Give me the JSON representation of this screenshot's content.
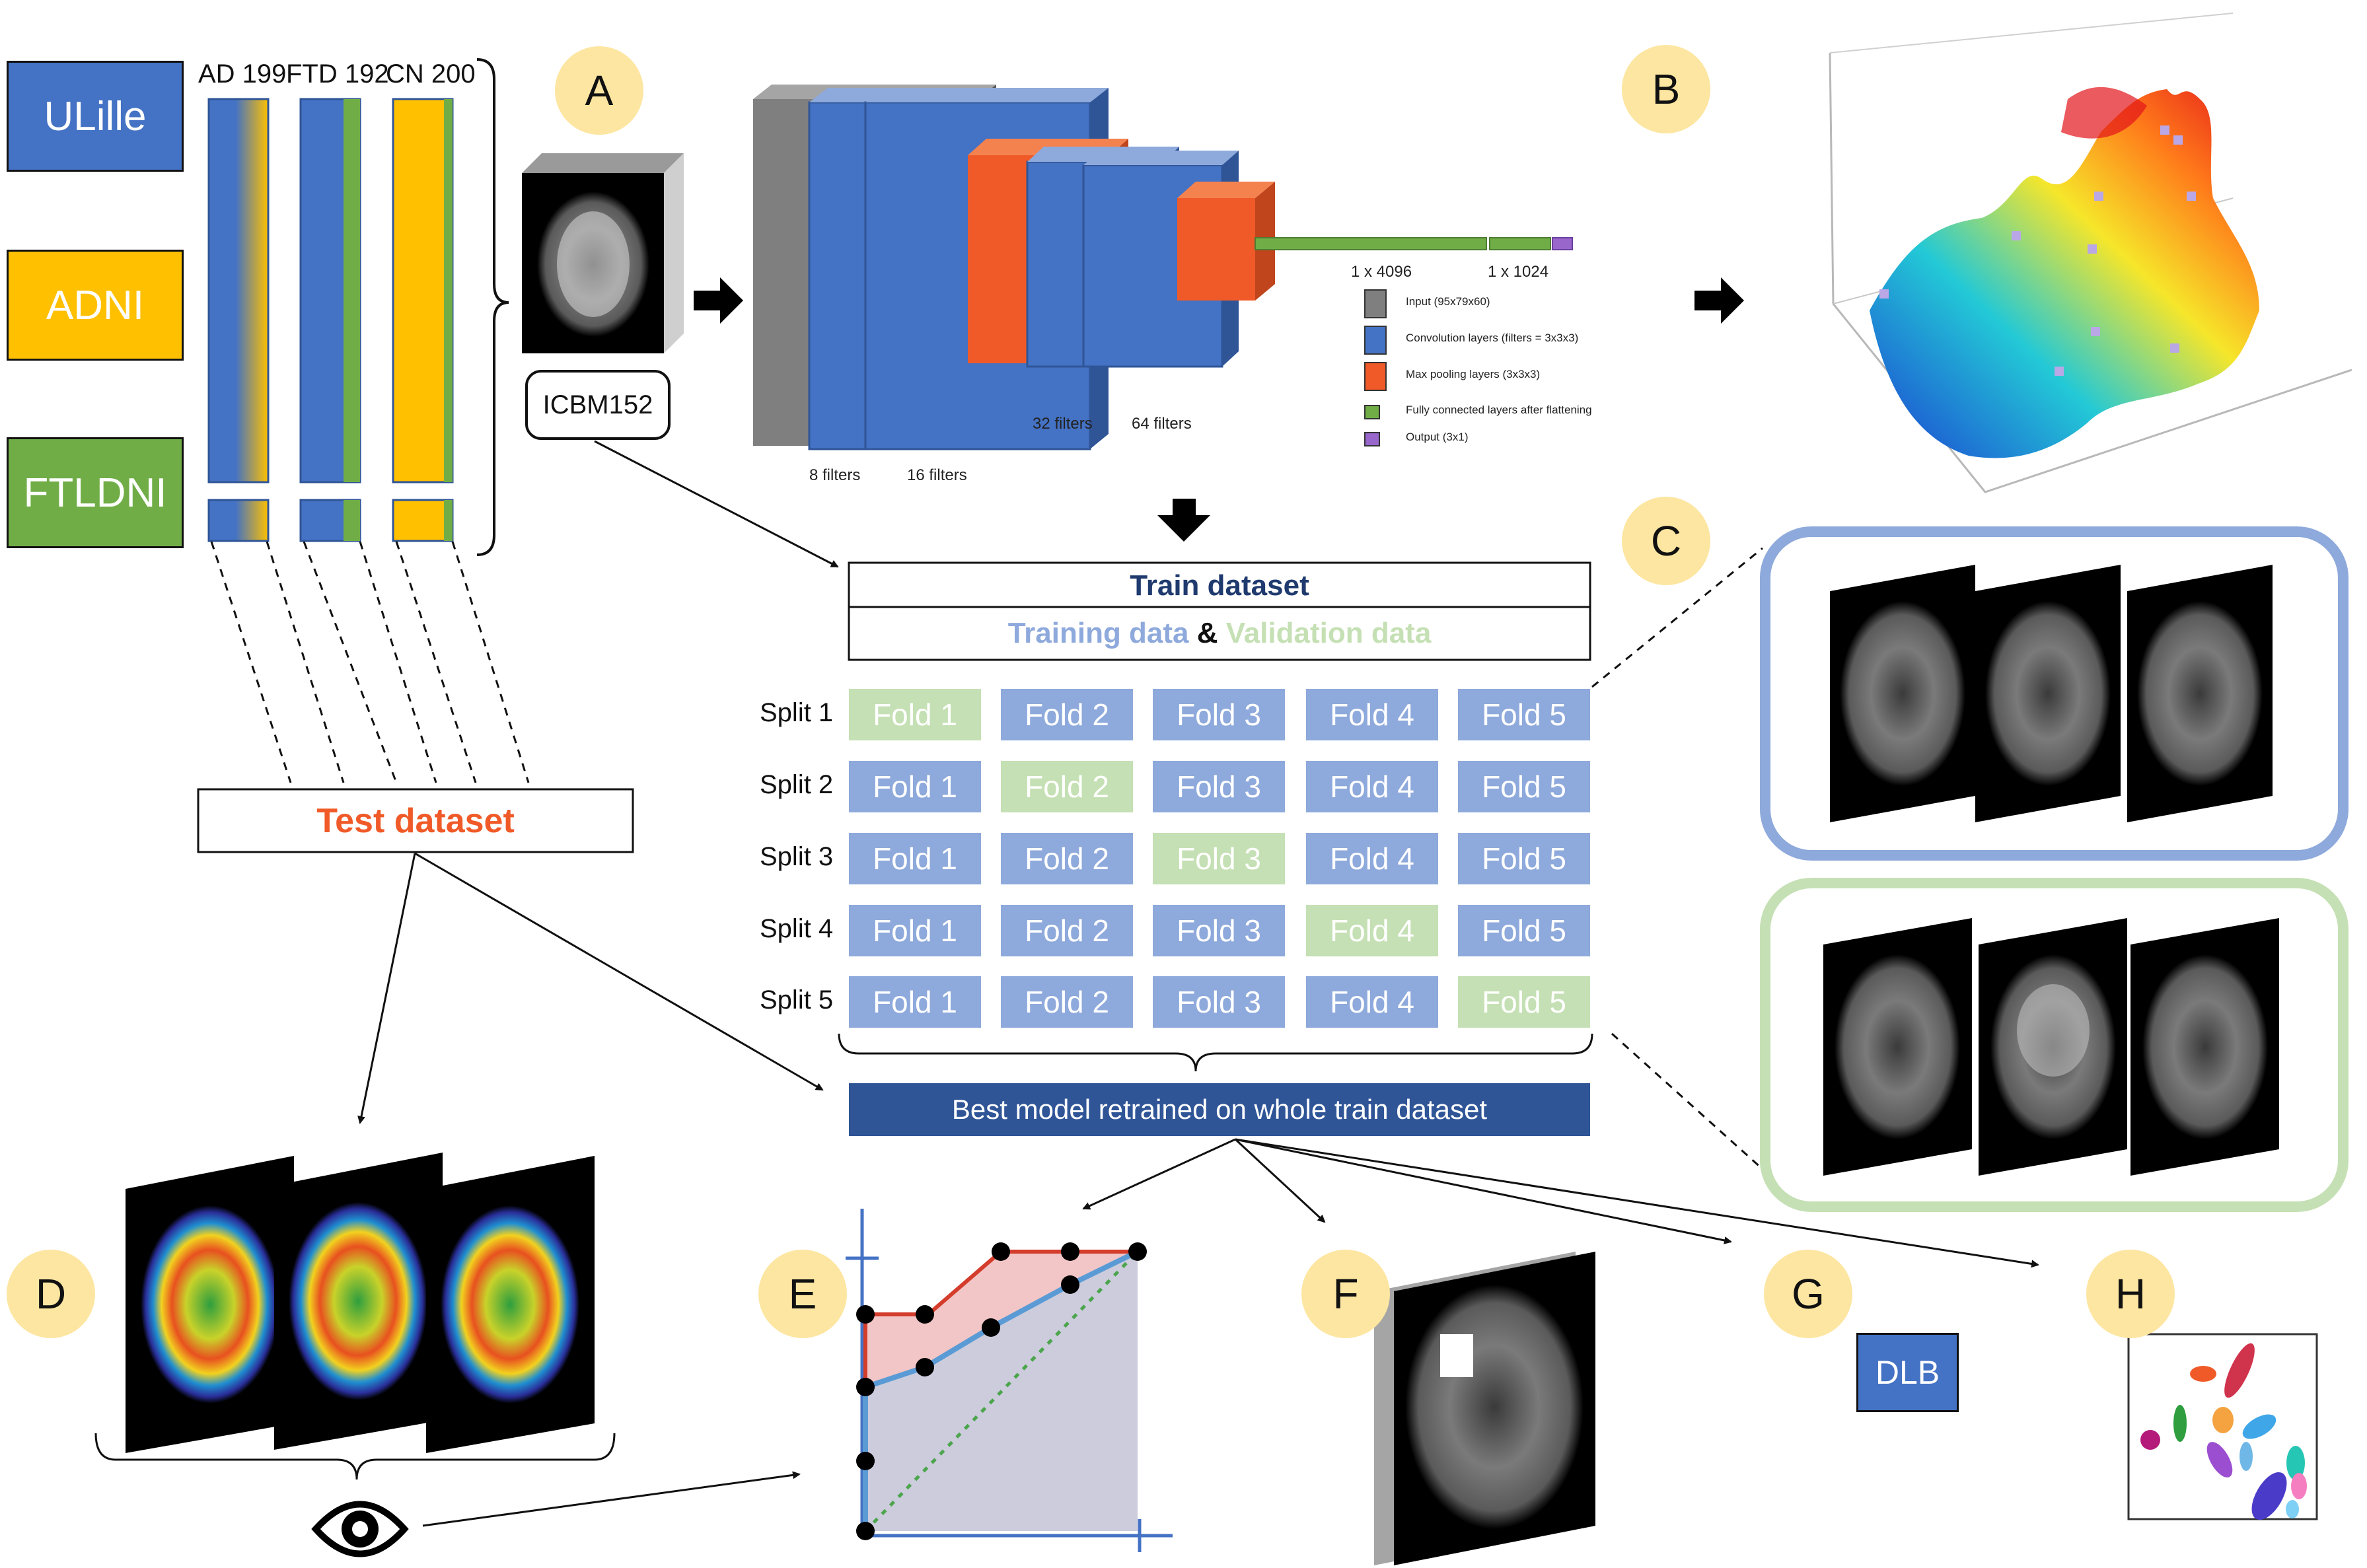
{
  "colors": {
    "ulille": "#4472c4",
    "adni": "#ffc000",
    "ftldni": "#70ad47",
    "badge": "#fde6a1",
    "fold_training": "#8ea9db",
    "fold_validation": "#c5e0b4",
    "test_title": "#f05a28",
    "train_title": "#1f3a6e",
    "best_model_bg": "#2f5597",
    "dlb_bg": "#4472c4"
  },
  "sources": {
    "ulille": "ULille",
    "adni": "ADNI",
    "ftldni": "FTLDNI"
  },
  "columns": {
    "ad": "AD 199",
    "ftd": "FTD 192",
    "cn": "CN 200"
  },
  "badges": {
    "a": "A",
    "b": "B",
    "c": "C",
    "d": "D",
    "e": "E",
    "f": "F",
    "g": "G",
    "h": "H"
  },
  "template_label": "ICBM152",
  "cnn": {
    "fc1": "1 x 4096",
    "fc2": "1 x 1024",
    "filters_8": "8 filters",
    "filters_16": "16 filters",
    "filters_32": "32 filters",
    "filters_64": "64 filters",
    "legend": [
      {
        "label": "Input (95x79x60)",
        "color": "#7f7f7f"
      },
      {
        "label": "Convolution layers (filters = 3x3x3)",
        "color": "#4472c4"
      },
      {
        "label": "Max pooling layers (3x3x3)",
        "color": "#f05a28"
      },
      {
        "label": "Fully connected layers after flattening",
        "color": "#70ad47"
      },
      {
        "label": "Output (3x1)",
        "color": "#9966cc"
      }
    ]
  },
  "train_dataset": {
    "title": "Train dataset",
    "training": "Training data",
    "amp": "&",
    "validation": "Validation data"
  },
  "splits": [
    {
      "label": "Split 1",
      "folds": [
        "Fold 1",
        "Fold 2",
        "Fold 3",
        "Fold 4",
        "Fold 5"
      ],
      "validation_index": 0
    },
    {
      "label": "Split 2",
      "folds": [
        "Fold 1",
        "Fold 2",
        "Fold 3",
        "Fold 4",
        "Fold 5"
      ],
      "validation_index": 1
    },
    {
      "label": "Split 3",
      "folds": [
        "Fold 1",
        "Fold 2",
        "Fold 3",
        "Fold 4",
        "Fold 5"
      ],
      "validation_index": 2
    },
    {
      "label": "Split 4",
      "folds": [
        "Fold 1",
        "Fold 2",
        "Fold 3",
        "Fold 4",
        "Fold 5"
      ],
      "validation_index": 3
    },
    {
      "label": "Split 5",
      "folds": [
        "Fold 1",
        "Fold 2",
        "Fold 3",
        "Fold 4",
        "Fold 5"
      ],
      "validation_index": 4
    }
  ],
  "test_dataset": "Test dataset",
  "best_model": "Best model retrained on whole train dataset",
  "dlb": "DLB",
  "icons": {
    "eye": "eye-icon",
    "arrow": "arrow-right-icon"
  }
}
